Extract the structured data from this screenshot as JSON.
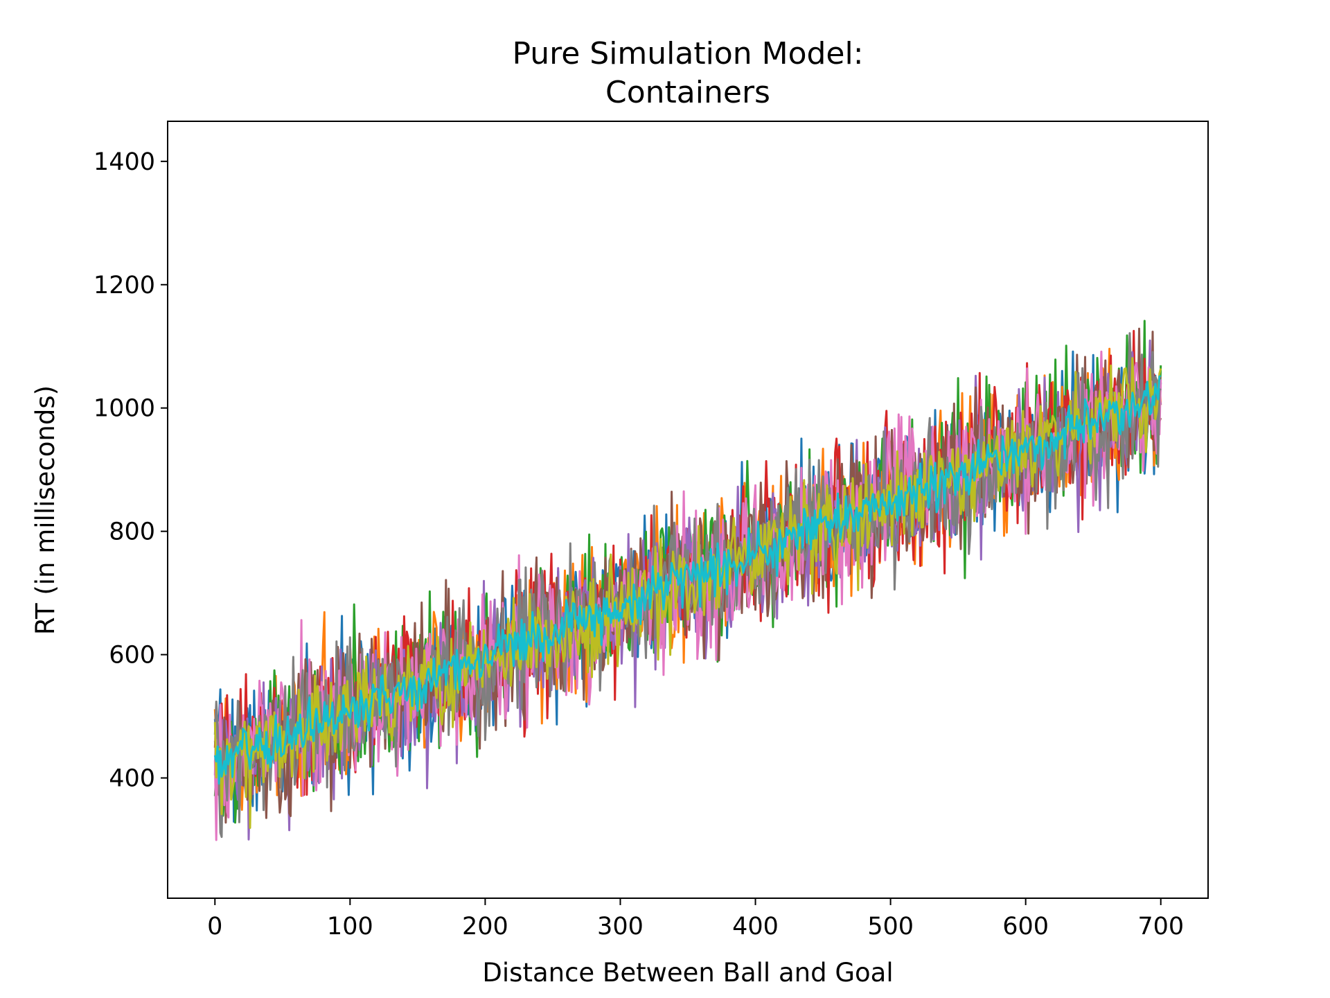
{
  "chart_data": {
    "type": "line",
    "title_lines": [
      "Pure Simulation Model:",
      "Containers"
    ],
    "xlabel": "Distance Between Ball and Goal",
    "ylabel": "RT (in milliseconds)",
    "xlim": [
      -35,
      735
    ],
    "ylim": [
      205,
      1465
    ],
    "x_ticks": [
      0,
      100,
      200,
      300,
      400,
      500,
      600,
      700
    ],
    "y_ticks": [
      400,
      600,
      800,
      1000,
      1200,
      1400
    ],
    "x_tick_labels": [
      "0",
      "100",
      "200",
      "300",
      "400",
      "500",
      "600",
      "700"
    ],
    "y_tick_labels": [
      "400",
      "600",
      "800",
      "1000",
      "1200",
      "1400"
    ],
    "x_range": [
      0,
      700
    ],
    "points_per_series": 701,
    "grid": false,
    "legend": "none",
    "series": [
      {
        "color": "#1f77b4",
        "intercept": 420,
        "slope": 0.85,
        "noise": 95
      },
      {
        "color": "#ff7f0e",
        "intercept": 430,
        "slope": 0.83,
        "noise": 100
      },
      {
        "color": "#2ca02c",
        "intercept": 425,
        "slope": 0.86,
        "noise": 100
      },
      {
        "color": "#d62728",
        "intercept": 430,
        "slope": 0.84,
        "noise": 100
      },
      {
        "color": "#9467bd",
        "intercept": 415,
        "slope": 0.85,
        "noise": 95
      },
      {
        "color": "#8c564b",
        "intercept": 425,
        "slope": 0.85,
        "noise": 100
      },
      {
        "color": "#e377c2",
        "intercept": 420,
        "slope": 0.86,
        "noise": 100
      },
      {
        "color": "#7f7f7f",
        "intercept": 420,
        "slope": 0.84,
        "noise": 95
      },
      {
        "color": "#bcbd22",
        "intercept": 420,
        "slope": 0.85,
        "noise": 65
      },
      {
        "color": "#17becf",
        "intercept": 425,
        "slope": 0.85,
        "noise": 35
      }
    ]
  }
}
